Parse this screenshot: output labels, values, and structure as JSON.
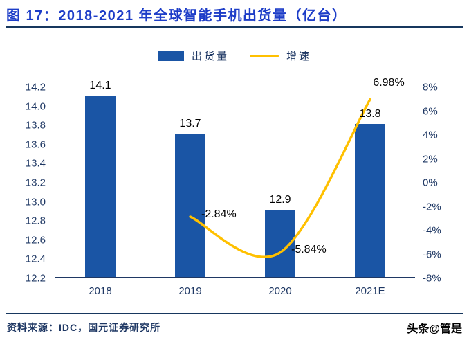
{
  "header": {
    "title": "图 17：2018-2021 年全球智能手机出货量（亿台）"
  },
  "chart_data": {
    "type": "bar+line",
    "title": "2018-2021 年全球智能手机出货量（亿台）",
    "categories": [
      "2018",
      "2019",
      "2020",
      "2021E"
    ],
    "series": [
      {
        "name": "出货量",
        "type": "bar",
        "axis": "left",
        "values": [
          14.1,
          13.7,
          12.9,
          13.8
        ],
        "labels": [
          "14.1",
          "13.7",
          "12.9",
          "13.8"
        ]
      },
      {
        "name": "增速",
        "type": "line",
        "axis": "right",
        "values": [
          null,
          -2.84,
          -5.84,
          6.98
        ],
        "labels": [
          "-2.84%",
          "-5.84%",
          "6.98%"
        ]
      }
    ],
    "left_axis": {
      "min": 12.2,
      "max": 14.2,
      "step": 0.2,
      "ticks": [
        "14.2",
        "14.0",
        "13.8",
        "13.6",
        "13.4",
        "13.2",
        "13.0",
        "12.8",
        "12.6",
        "12.4",
        "12.2"
      ]
    },
    "right_axis": {
      "min": -8,
      "max": 8,
      "step": 2,
      "ticks": [
        "8%",
        "6%",
        "4%",
        "2%",
        "0%",
        "-2%",
        "-4%",
        "-6%",
        "-8%"
      ]
    },
    "grid": false,
    "legend_position": "top",
    "xlabel": "",
    "ylabel": ""
  },
  "footer": {
    "source_label": "资料来源：",
    "source_text": "IDC，国元证券研究所",
    "watermark": "头条@管是"
  },
  "colors": {
    "title_blue": "#1d3dc8",
    "bar_blue": "#1a55a5",
    "line_gold": "#ffc000",
    "axis_navy": "#1f3864",
    "rule_navy": "#17375e",
    "label_black": "#000000"
  }
}
